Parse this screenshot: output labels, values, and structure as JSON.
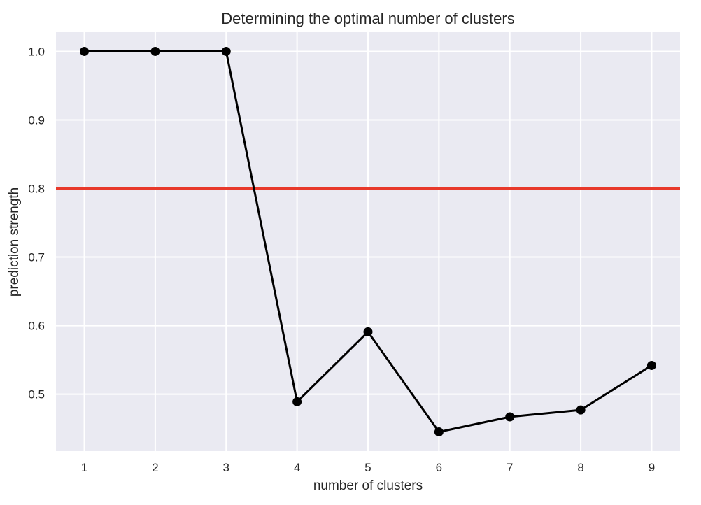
{
  "chart_data": {
    "type": "line",
    "title": "Determining the optimal number of clusters",
    "xlabel": "number of clusters",
    "ylabel": "prediction strength",
    "x": [
      1,
      2,
      3,
      4,
      5,
      6,
      7,
      8,
      9
    ],
    "series": [
      {
        "name": "prediction strength",
        "values": [
          1.0,
          1.0,
          1.0,
          0.489,
          0.591,
          0.445,
          0.467,
          0.477,
          0.542
        ],
        "color": "#000000",
        "marker": "circle"
      }
    ],
    "reference_lines": [
      {
        "type": "horizontal",
        "y": 0.8,
        "color": "#e8392b"
      }
    ],
    "xticks": [
      1,
      2,
      3,
      4,
      5,
      6,
      7,
      8,
      9
    ],
    "yticks": [
      0.5,
      0.6,
      0.7,
      0.8,
      0.9,
      1.0
    ],
    "ytick_labels": [
      "0.5",
      "0.6",
      "0.7",
      "0.8",
      "0.9",
      "1.0"
    ],
    "xlim": [
      0.6,
      9.4
    ],
    "ylim": [
      0.417,
      1.028
    ],
    "grid": true,
    "background": "#eaeaf2",
    "legend": null
  }
}
